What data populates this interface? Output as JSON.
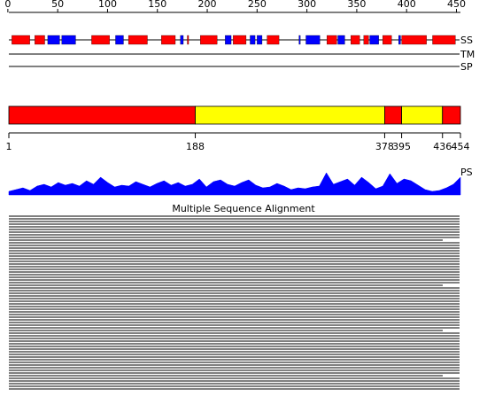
{
  "scale": {
    "ticks": [
      0,
      50,
      100,
      150,
      200,
      250,
      300,
      350,
      400,
      450
    ]
  },
  "ss": {
    "label": "SS",
    "colors": {
      "helix": "#ff0000",
      "strand": "#0000ff"
    },
    "segments": [
      {
        "type": "helix",
        "start": 4,
        "end": 22
      },
      {
        "type": "helix",
        "start": 27,
        "end": 37
      },
      {
        "type": "strand",
        "start": 40,
        "end": 52
      },
      {
        "type": "strand",
        "start": 54,
        "end": 68
      },
      {
        "type": "helix",
        "start": 84,
        "end": 102
      },
      {
        "type": "strand",
        "start": 108,
        "end": 116
      },
      {
        "type": "helix",
        "start": 121,
        "end": 140
      },
      {
        "type": "helix",
        "start": 154,
        "end": 168
      },
      {
        "type": "strand",
        "start": 173,
        "end": 176
      },
      {
        "type": "helix",
        "start": 180,
        "end": 181
      },
      {
        "type": "helix",
        "start": 193,
        "end": 210
      },
      {
        "type": "strand",
        "start": 218,
        "end": 224
      },
      {
        "type": "helix",
        "start": 226,
        "end": 239
      },
      {
        "type": "strand",
        "start": 243,
        "end": 248
      },
      {
        "type": "strand",
        "start": 250,
        "end": 255
      },
      {
        "type": "helix",
        "start": 260,
        "end": 272
      },
      {
        "type": "strand",
        "start": 292,
        "end": 293
      },
      {
        "type": "strand",
        "start": 299,
        "end": 313
      },
      {
        "type": "helix",
        "start": 320,
        "end": 330
      },
      {
        "type": "strand",
        "start": 331,
        "end": 338
      },
      {
        "type": "helix",
        "start": 344,
        "end": 353
      },
      {
        "type": "helix",
        "start": 357,
        "end": 362
      },
      {
        "type": "strand",
        "start": 363,
        "end": 372
      },
      {
        "type": "helix",
        "start": 376,
        "end": 385
      },
      {
        "type": "strand",
        "start": 392,
        "end": 394
      },
      {
        "type": "helix",
        "start": 395,
        "end": 420
      },
      {
        "type": "helix",
        "start": 426,
        "end": 449
      }
    ]
  },
  "tm": {
    "label": "TM"
  },
  "sp": {
    "label": "SP"
  },
  "domains": {
    "boundaries": [
      1,
      188,
      378,
      395,
      436,
      454
    ],
    "segments": [
      {
        "start": 1,
        "end": 188,
        "color": "#ff0000"
      },
      {
        "start": 188,
        "end": 378,
        "color": "#ffff00"
      },
      {
        "start": 378,
        "end": 395,
        "color": "#ff0000"
      },
      {
        "start": 395,
        "end": 436,
        "color": "#ffff00"
      },
      {
        "start": 436,
        "end": 454,
        "color": "#ff0000"
      }
    ]
  },
  "ps": {
    "label": "PS",
    "color": "#0000ff",
    "values": [
      4,
      6,
      8,
      5,
      10,
      12,
      9,
      14,
      11,
      13,
      10,
      16,
      12,
      20,
      14,
      9,
      11,
      10,
      15,
      12,
      9,
      13,
      16,
      11,
      14,
      10,
      12,
      18,
      9,
      15,
      17,
      12,
      10,
      14,
      17,
      11,
      8,
      9,
      13,
      10,
      6,
      8,
      7,
      9,
      10,
      25,
      12,
      15,
      18,
      11,
      20,
      14,
      7,
      10,
      24,
      13,
      18,
      16,
      11,
      6,
      4,
      5,
      8,
      12,
      20
    ]
  },
  "msa": {
    "title": "Multiple Sequence Alignment"
  }
}
